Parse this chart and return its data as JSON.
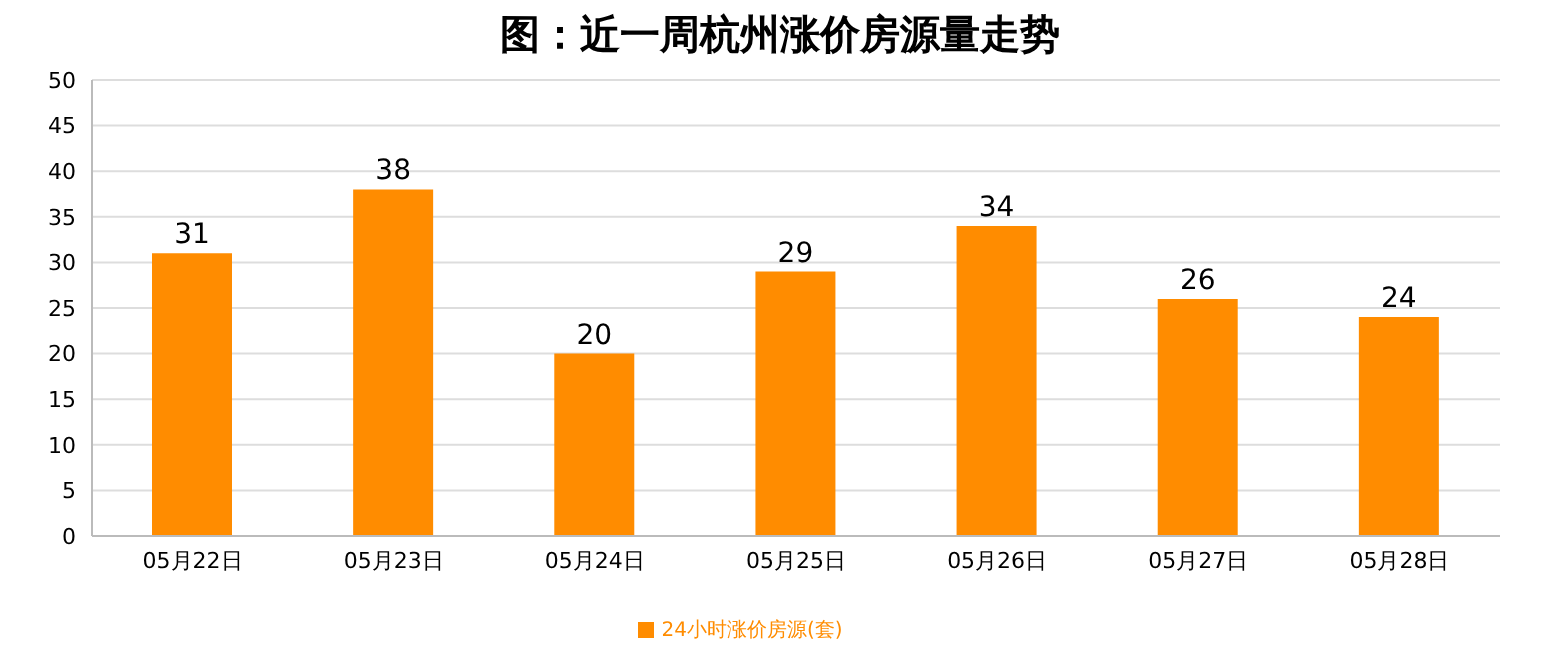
{
  "chart_data": {
    "type": "bar",
    "title": "图：近一周杭州涨价房源量走势",
    "categories": [
      "05月22日",
      "05月23日",
      "05月24日",
      "05月25日",
      "05月26日",
      "05月27日",
      "05月28日"
    ],
    "series": [
      {
        "name": "24小时涨价房源(套)",
        "color": "#ff8c00",
        "values": [
          31,
          38,
          20,
          29,
          34,
          26,
          24
        ]
      }
    ],
    "ylim": [
      0,
      50
    ],
    "yticks": [
      0,
      5,
      10,
      15,
      20,
      25,
      30,
      35,
      40,
      45,
      50
    ],
    "grid": "y",
    "legend": "bottom",
    "data_labels": true
  }
}
